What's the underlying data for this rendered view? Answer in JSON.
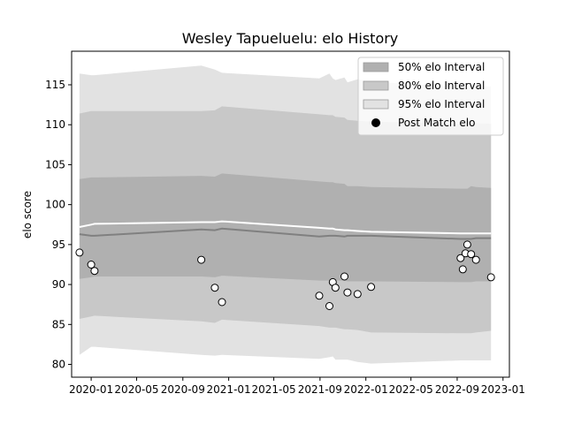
{
  "chart_data": {
    "type": "area",
    "title": "Wesley Tapueluelu: elo History",
    "xlabel": "",
    "ylabel": "elo score",
    "xlim": [
      "2019-11-10",
      "2023-01-18"
    ],
    "ylim": [
      78.4,
      119.2
    ],
    "grid": false,
    "legend_position": "top-right",
    "x_ticks": [
      "2020-01",
      "2020-05",
      "2020-09",
      "2021-01",
      "2021-05",
      "2021-09",
      "2022-01",
      "2022-05",
      "2022-09",
      "2023-01"
    ],
    "y_ticks": [
      80,
      85,
      90,
      95,
      100,
      105,
      110,
      115
    ],
    "dates": [
      "2019-12-01",
      "2020-01-01",
      "2020-01-10",
      "2020-10-20",
      "2020-11-25",
      "2020-12-14",
      "2021-08-30",
      "2021-09-26",
      "2021-10-05",
      "2021-10-12",
      "2021-11-05",
      "2021-11-13",
      "2021-12-10",
      "2022-01-15",
      "2022-09-10",
      "2022-09-16",
      "2022-09-23",
      "2022-09-28",
      "2022-10-08",
      "2022-10-21",
      "2022-11-30"
    ],
    "series": [
      {
        "name": "Post Match elo",
        "style": "point",
        "values": [
          94.0,
          92.5,
          91.7,
          93.1,
          89.6,
          87.8,
          88.6,
          87.3,
          90.3,
          89.6,
          91.0,
          89.0,
          88.8,
          89.7,
          93.3,
          91.9,
          93.9,
          95.0,
          93.8,
          93.1,
          90.9
        ]
      },
      {
        "style": "line",
        "color": "#808080",
        "values": [
          96.3,
          96.1,
          96.1,
          96.9,
          96.8,
          97.0,
          96.0,
          96.1,
          96.1,
          96.1,
          96.0,
          96.1,
          96.1,
          96.1,
          95.7,
          95.7,
          95.7,
          95.7,
          95.7,
          95.8,
          95.8
        ]
      },
      {
        "style": "line",
        "color": "#ffffff",
        "values": [
          97.2,
          97.5,
          97.6,
          97.8,
          97.8,
          97.9,
          97.1,
          97.0,
          97.0,
          96.9,
          96.8,
          96.8,
          96.7,
          96.6,
          96.4,
          96.4,
          96.4,
          96.4,
          96.4,
          96.4,
          96.4
        ]
      },
      {
        "name": "50% elo Interval",
        "style": "band",
        "color": "#b0b0b0",
        "lower": [
          90.7,
          90.9,
          91.0,
          91.0,
          90.9,
          91.1,
          90.5,
          90.5,
          90.5,
          90.5,
          90.5,
          90.4,
          90.4,
          90.4,
          90.3,
          90.3,
          90.3,
          90.3,
          90.3,
          90.4,
          90.4
        ],
        "upper": [
          103.2,
          103.4,
          103.4,
          103.6,
          103.5,
          103.9,
          102.9,
          102.8,
          102.8,
          102.7,
          102.6,
          102.3,
          102.3,
          102.2,
          102.0,
          102.0,
          102.0,
          102.0,
          102.3,
          102.2,
          102.1
        ]
      },
      {
        "name": "80% elo Interval",
        "style": "band",
        "color": "#c8c8c8",
        "lower": [
          85.7,
          86.0,
          86.1,
          85.4,
          85.2,
          85.6,
          84.8,
          84.6,
          84.6,
          84.6,
          84.4,
          84.4,
          84.3,
          84.0,
          83.9,
          83.9,
          83.9,
          83.9,
          83.9,
          84.0,
          84.2
        ],
        "upper": [
          111.4,
          111.7,
          111.7,
          111.7,
          111.8,
          112.3,
          111.3,
          111.2,
          111.2,
          111.0,
          110.9,
          110.6,
          110.5,
          110.4,
          110.1,
          110.1,
          110.1,
          110.1,
          110.3,
          110.2,
          110.1
        ]
      },
      {
        "name": "95% elo Interval",
        "style": "band",
        "color": "#e2e2e2",
        "lower": [
          81.2,
          82.2,
          82.2,
          81.2,
          81.1,
          81.2,
          80.7,
          80.9,
          81.0,
          80.6,
          80.6,
          80.6,
          80.3,
          80.1,
          80.5,
          80.5,
          80.5,
          80.5,
          80.5,
          80.5,
          80.5
        ],
        "upper": [
          116.4,
          116.2,
          116.2,
          117.4,
          116.9,
          116.5,
          115.8,
          116.4,
          115.8,
          115.6,
          115.9,
          115.3,
          115.7,
          115.4,
          114.7,
          114.7,
          114.7,
          114.7,
          114.8,
          114.8,
          114.8
        ]
      }
    ]
  }
}
